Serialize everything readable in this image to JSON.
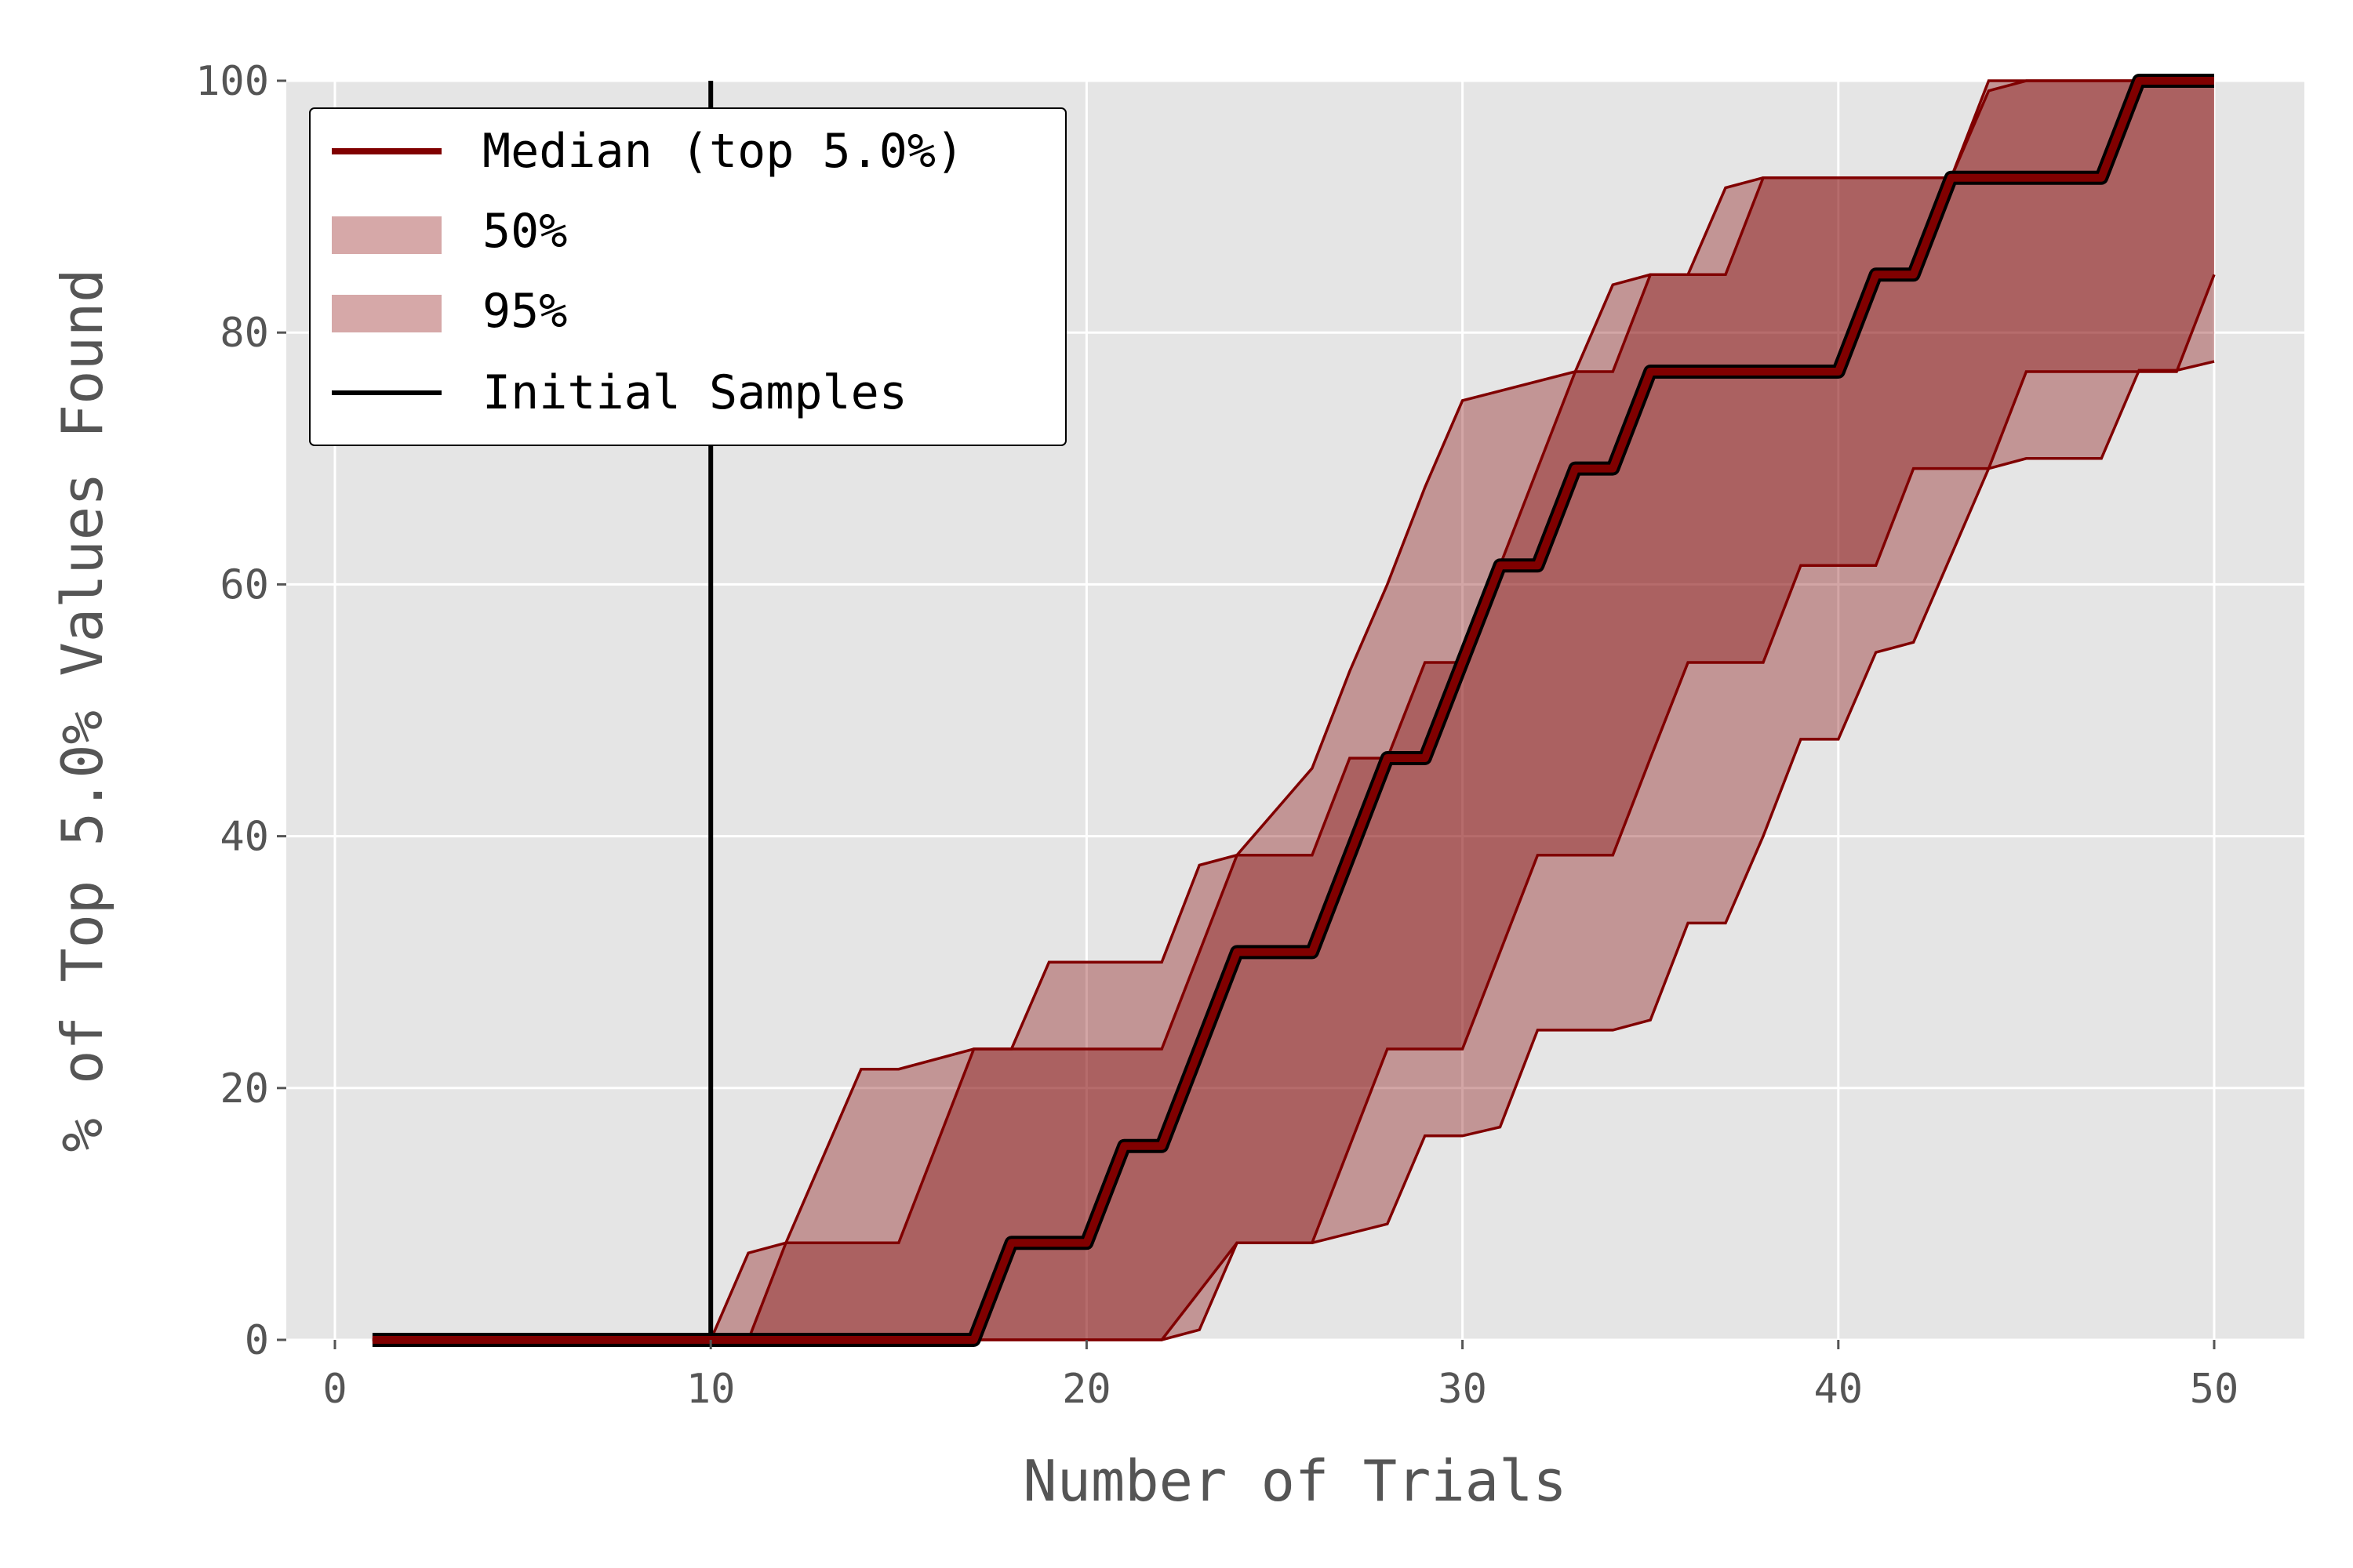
{
  "chart_data": {
    "type": "line",
    "title": "",
    "xlabel": "Number of Trials",
    "ylabel": "% of Top 5.0% Values Found",
    "xlim": [
      -1.2,
      52.4
    ],
    "ylim": [
      0,
      100
    ],
    "xticks": [
      0,
      10,
      20,
      30,
      40,
      50
    ],
    "yticks": [
      0,
      20,
      40,
      60,
      80,
      100
    ],
    "grid": true,
    "background": "#e5e5e5",
    "legend_position": "upper-left",
    "legend": [
      {
        "label": "Median (top 5.0%)",
        "kind": "line",
        "color": "#800000"
      },
      {
        "label": "50%",
        "kind": "patch",
        "color": "#d6a8a8"
      },
      {
        "label": "95%",
        "kind": "patch",
        "color": "#d6a8a8"
      },
      {
        "label": "Initial Samples",
        "kind": "line",
        "color": "#000000"
      }
    ],
    "initial_samples_x": 10,
    "median": {
      "name": "Median (top 5.0%)",
      "color": "#800000",
      "x": [
        1,
        17,
        18,
        20,
        21,
        22,
        24,
        26,
        28,
        29,
        31,
        32,
        33,
        34,
        35,
        40,
        41,
        42,
        43,
        47,
        48,
        50
      ],
      "y": [
        0,
        0,
        7.7,
        7.7,
        15.4,
        15.4,
        30.8,
        30.8,
        46.2,
        46.2,
        61.5,
        61.5,
        69.2,
        69.2,
        76.9,
        76.9,
        84.6,
        84.6,
        92.3,
        92.3,
        100,
        100
      ]
    },
    "band_95": {
      "name": "95%",
      "color": "#800000",
      "upper": {
        "x": [
          1,
          10,
          11,
          12,
          14,
          15,
          17,
          18,
          19,
          22,
          23,
          24,
          26,
          27,
          28,
          29,
          30,
          33,
          34,
          35,
          36,
          37,
          38,
          43,
          44,
          45,
          50
        ],
        "y": [
          0,
          0,
          6.9,
          7.7,
          21.5,
          21.5,
          23.1,
          23.1,
          30,
          30,
          37.7,
          38.5,
          45.4,
          53.1,
          60,
          67.7,
          74.6,
          76.9,
          83.8,
          84.6,
          84.6,
          91.5,
          92.3,
          92.3,
          99.2,
          100,
          100
        ]
      },
      "lower": {
        "x": [
          1,
          22,
          23,
          24,
          26,
          28,
          29,
          30,
          31,
          32,
          33,
          34,
          35,
          36,
          37,
          38,
          39,
          40,
          41,
          42,
          43,
          44,
          45,
          46,
          47,
          48,
          49,
          50
        ],
        "y": [
          0,
          0,
          0.8,
          7.7,
          7.7,
          9.2,
          16.2,
          16.2,
          16.9,
          24.6,
          24.6,
          24.6,
          25.4,
          33.1,
          33.1,
          40,
          47.7,
          47.7,
          54.6,
          55.4,
          62.3,
          69.2,
          70,
          70,
          70,
          77,
          77,
          77.7
        ]
      }
    },
    "band_50": {
      "name": "50%",
      "color": "#800000",
      "upper": {
        "x": [
          1,
          11,
          12,
          15,
          17,
          18,
          22,
          23,
          24,
          25,
          26,
          27,
          28,
          29,
          30,
          31,
          32,
          33,
          34,
          35,
          36,
          37,
          38,
          39,
          40,
          41,
          42,
          43,
          44,
          45,
          50
        ],
        "y": [
          0,
          0,
          7.7,
          7.7,
          23.1,
          23.1,
          23.1,
          30.8,
          38.5,
          38.5,
          38.5,
          46.2,
          46.2,
          53.8,
          53.8,
          61.5,
          69.2,
          76.9,
          76.9,
          84.6,
          84.6,
          84.6,
          92.3,
          92.3,
          92.3,
          92.3,
          92.3,
          92.3,
          100,
          100,
          100
        ]
      },
      "lower": {
        "x": [
          1,
          20,
          22,
          24,
          25,
          26,
          27,
          28,
          29,
          30,
          31,
          32,
          33,
          34,
          35,
          36,
          37,
          38,
          39,
          40,
          41,
          42,
          43,
          44,
          45,
          46,
          47,
          48,
          49,
          50
        ],
        "y": [
          0,
          0,
          0,
          7.7,
          7.7,
          7.7,
          15.4,
          23.1,
          23.1,
          23.1,
          30.8,
          38.5,
          38.5,
          38.5,
          46.2,
          53.8,
          53.8,
          53.8,
          61.5,
          61.5,
          61.5,
          69.2,
          69.2,
          69.2,
          76.9,
          76.9,
          76.9,
          76.9,
          76.9,
          84.6
        ]
      }
    }
  }
}
